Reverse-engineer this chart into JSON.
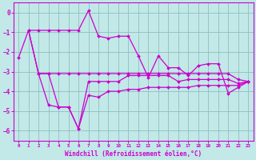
{
  "xlabel": "Windchill (Refroidissement éolien,°C)",
  "xlim": [
    -0.5,
    23.5
  ],
  "ylim": [
    -6.5,
    0.5
  ],
  "yticks": [
    0,
    -1,
    -2,
    -3,
    -4,
    -5,
    -6
  ],
  "xticks": [
    0,
    1,
    2,
    3,
    4,
    5,
    6,
    7,
    8,
    9,
    10,
    11,
    12,
    13,
    14,
    15,
    16,
    17,
    18,
    19,
    20,
    21,
    22,
    23
  ],
  "bg_color": "#c2e8e8",
  "line_color": "#cc00cc",
  "grid_color": "#88bbbb",
  "line_a_x": [
    0,
    1,
    2,
    3,
    4,
    5,
    6,
    7,
    8,
    9,
    10,
    11,
    12,
    13,
    14,
    15,
    16,
    17,
    18,
    19,
    20,
    21,
    22,
    23
  ],
  "line_a_y": [
    -2.3,
    -0.9,
    -0.9,
    -0.9,
    -0.9,
    -0.9,
    -0.9,
    0.1,
    -1.2,
    -1.3,
    -1.2,
    -1.2,
    -2.2,
    -3.3,
    -2.2,
    -2.8,
    -2.8,
    -3.2,
    -2.7,
    -2.6,
    -2.6,
    -4.1,
    -3.8,
    -3.5
  ],
  "line_b_x": [
    1,
    2,
    3,
    4,
    5,
    6,
    7,
    8,
    9,
    10,
    11,
    12,
    13,
    14,
    15,
    16,
    17,
    18,
    19,
    20,
    21,
    22,
    23
  ],
  "line_b_y": [
    -0.9,
    -3.1,
    -3.1,
    -3.1,
    -3.1,
    -3.1,
    -3.1,
    -3.1,
    -3.1,
    -3.1,
    -3.1,
    -3.1,
    -3.1,
    -3.1,
    -3.1,
    -3.1,
    -3.1,
    -3.1,
    -3.1,
    -3.1,
    -3.1,
    -3.4,
    -3.5
  ],
  "line_c_x": [
    1,
    2,
    3,
    4,
    5,
    6,
    7,
    8,
    9,
    10,
    11,
    12,
    13,
    14,
    15,
    16,
    17,
    18,
    19,
    20,
    21,
    22,
    23
  ],
  "line_c_y": [
    -0.9,
    -3.1,
    -3.1,
    -4.8,
    -4.8,
    -5.9,
    -3.5,
    -3.5,
    -3.5,
    -3.5,
    -3.2,
    -3.2,
    -3.2,
    -3.2,
    -3.2,
    -3.5,
    -3.4,
    -3.4,
    -3.4,
    -3.4,
    -3.4,
    -3.6,
    -3.5
  ],
  "line_d_x": [
    2,
    3,
    4,
    5,
    6,
    7,
    8,
    9,
    10,
    11,
    12,
    13,
    14,
    15,
    16,
    17,
    18,
    19,
    20,
    21,
    22,
    23
  ],
  "line_d_y": [
    -3.1,
    -4.7,
    -4.8,
    -4.8,
    -5.9,
    -4.2,
    -4.3,
    -4.0,
    -4.0,
    -3.9,
    -3.9,
    -3.8,
    -3.8,
    -3.8,
    -3.8,
    -3.8,
    -3.7,
    -3.7,
    -3.7,
    -3.7,
    -3.7,
    -3.5
  ]
}
